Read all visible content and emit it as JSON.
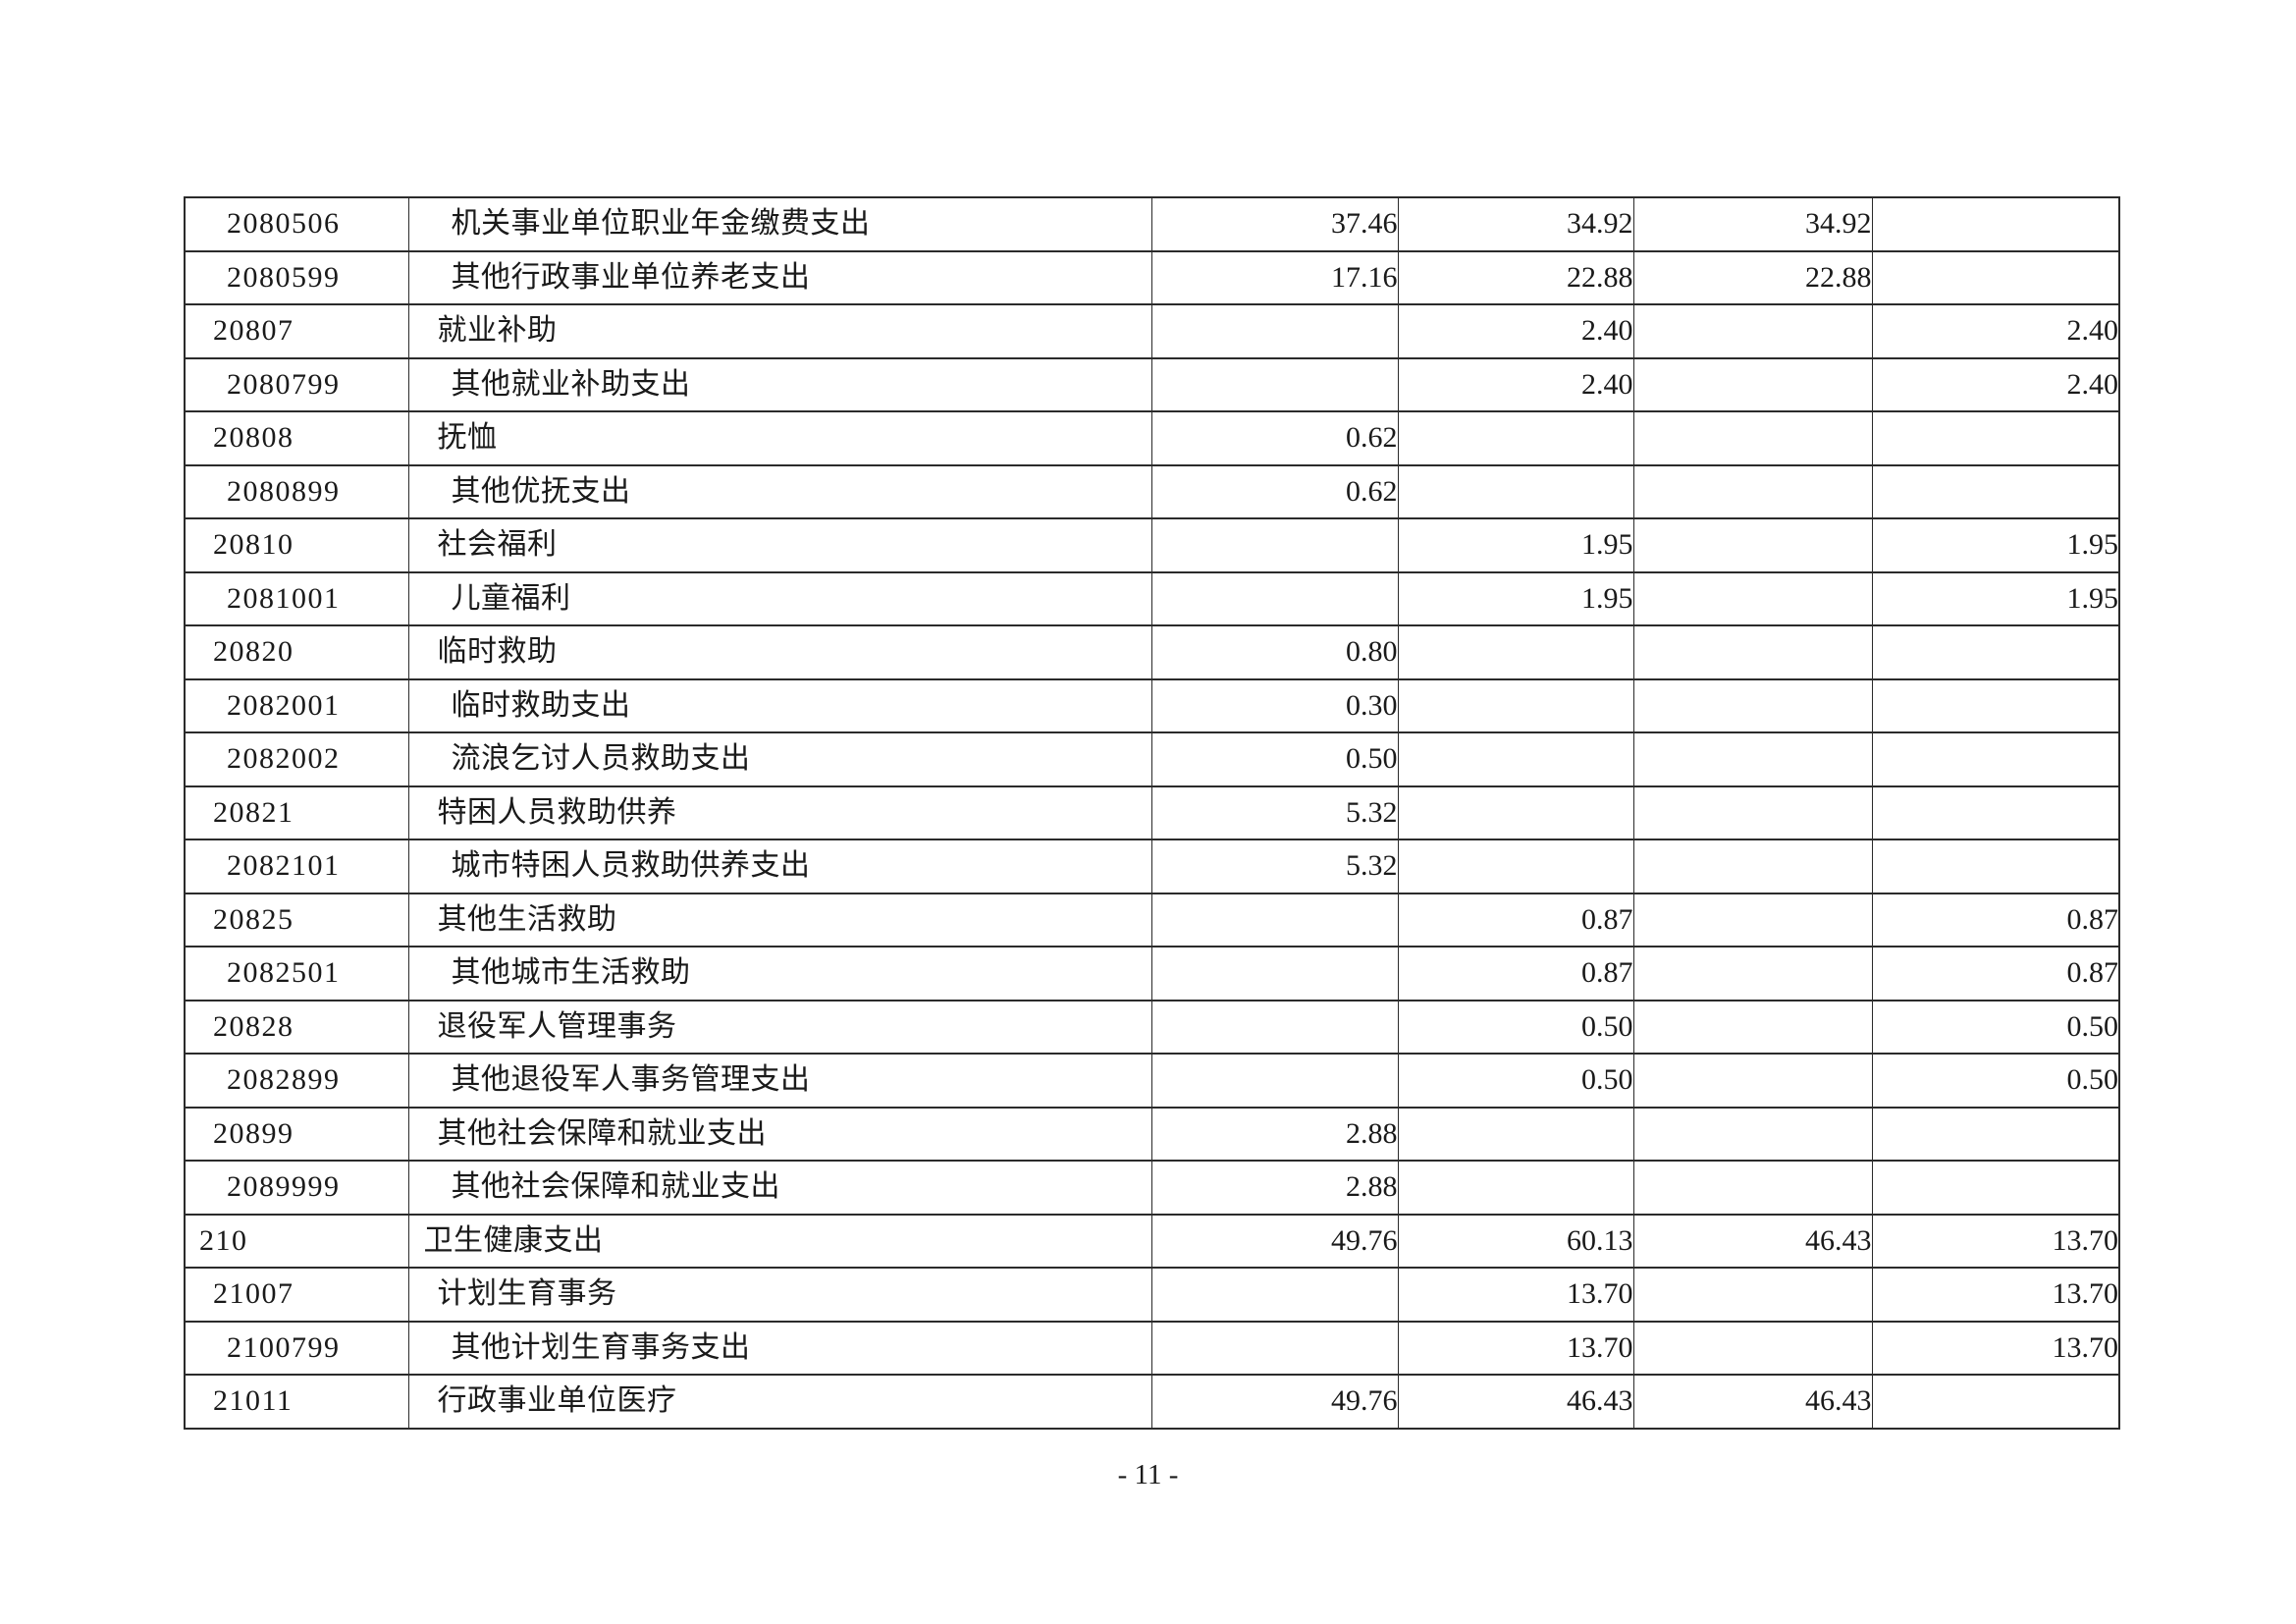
{
  "page": {
    "number_label": "- 11 -"
  },
  "colors": {
    "background": "#ffffff",
    "text": "#1a1a1a",
    "table_border": "#2b2b2b"
  },
  "table": {
    "rows": [
      {
        "code": "2080506",
        "name": "机关事业单位职业年金缴费支出",
        "level": 2,
        "values": [
          "37.46",
          "34.92",
          "34.92",
          ""
        ]
      },
      {
        "code": "2080599",
        "name": "其他行政事业单位养老支出",
        "level": 2,
        "values": [
          "17.16",
          "22.88",
          "22.88",
          ""
        ]
      },
      {
        "code": "20807",
        "name": "就业补助",
        "level": 1,
        "values": [
          "",
          "2.40",
          "",
          "2.40"
        ]
      },
      {
        "code": "2080799",
        "name": "其他就业补助支出",
        "level": 2,
        "values": [
          "",
          "2.40",
          "",
          "2.40"
        ]
      },
      {
        "code": "20808",
        "name": "抚恤",
        "level": 1,
        "values": [
          "0.62",
          "",
          "",
          ""
        ]
      },
      {
        "code": "2080899",
        "name": "其他优抚支出",
        "level": 2,
        "values": [
          "0.62",
          "",
          "",
          ""
        ]
      },
      {
        "code": "20810",
        "name": "社会福利",
        "level": 1,
        "values": [
          "",
          "1.95",
          "",
          "1.95"
        ]
      },
      {
        "code": "2081001",
        "name": "儿童福利",
        "level": 2,
        "values": [
          "",
          "1.95",
          "",
          "1.95"
        ]
      },
      {
        "code": "20820",
        "name": "临时救助",
        "level": 1,
        "values": [
          "0.80",
          "",
          "",
          ""
        ]
      },
      {
        "code": "2082001",
        "name": "临时救助支出",
        "level": 2,
        "values": [
          "0.30",
          "",
          "",
          ""
        ]
      },
      {
        "code": "2082002",
        "name": "流浪乞讨人员救助支出",
        "level": 2,
        "values": [
          "0.50",
          "",
          "",
          ""
        ]
      },
      {
        "code": "20821",
        "name": "特困人员救助供养",
        "level": 1,
        "values": [
          "5.32",
          "",
          "",
          ""
        ]
      },
      {
        "code": "2082101",
        "name": "城市特困人员救助供养支出",
        "level": 2,
        "values": [
          "5.32",
          "",
          "",
          ""
        ]
      },
      {
        "code": "20825",
        "name": "其他生活救助",
        "level": 1,
        "values": [
          "",
          "0.87",
          "",
          "0.87"
        ]
      },
      {
        "code": "2082501",
        "name": "其他城市生活救助",
        "level": 2,
        "values": [
          "",
          "0.87",
          "",
          "0.87"
        ]
      },
      {
        "code": "20828",
        "name": "退役军人管理事务",
        "level": 1,
        "values": [
          "",
          "0.50",
          "",
          "0.50"
        ]
      },
      {
        "code": "2082899",
        "name": "其他退役军人事务管理支出",
        "level": 2,
        "values": [
          "",
          "0.50",
          "",
          "0.50"
        ]
      },
      {
        "code": "20899",
        "name": "其他社会保障和就业支出",
        "level": 1,
        "values": [
          "2.88",
          "",
          "",
          ""
        ]
      },
      {
        "code": "2089999",
        "name": "其他社会保障和就业支出",
        "level": 2,
        "values": [
          "2.88",
          "",
          "",
          ""
        ]
      },
      {
        "code": "210",
        "name": "卫生健康支出",
        "level": 0,
        "values": [
          "49.76",
          "60.13",
          "46.43",
          "13.70"
        ]
      },
      {
        "code": "21007",
        "name": "计划生育事务",
        "level": 1,
        "values": [
          "",
          "13.70",
          "",
          "13.70"
        ]
      },
      {
        "code": "2100799",
        "name": "其他计划生育事务支出",
        "level": 2,
        "values": [
          "",
          "13.70",
          "",
          "13.70"
        ]
      },
      {
        "code": "21011",
        "name": "行政事业单位医疗",
        "level": 1,
        "values": [
          "49.76",
          "46.43",
          "46.43",
          ""
        ]
      }
    ]
  }
}
